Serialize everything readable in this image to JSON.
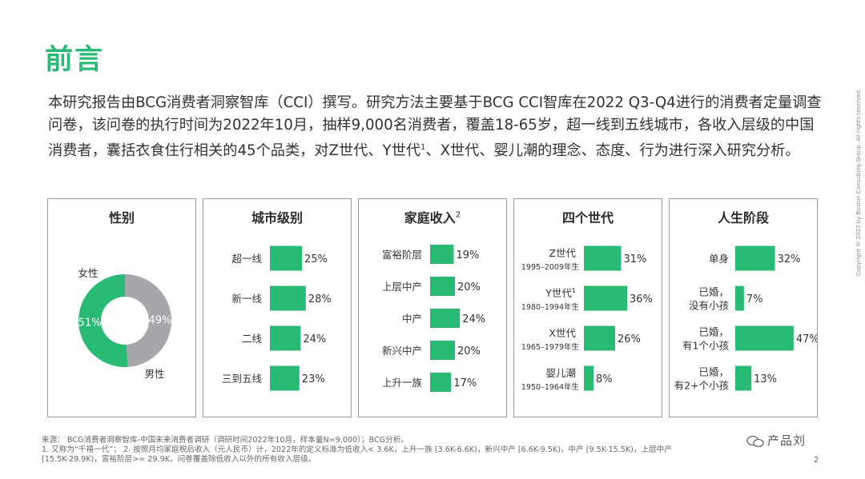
{
  "page_title": "前言",
  "intro_text": "本研究报告由BCG消费者洞察智库（CCI）撰写。研究方法主要基于BCG CCI智库在2022 Q3-Q4进行的消费者定量调查问卷，该问卷的执行时间为2022年10月，抽样9,000名消费者，覆盖18-65岁，超一线到五线城市，各收入层级的中国消费者，囊括衣食住行相关的45个品类，对Z世代、Y世代",
  "intro_sup": "1",
  "intro_tail": "、X世代、婴儿潮的理念、态度、行为进行深入研究分析。",
  "colors": {
    "accent": "#29ba74",
    "gray": "#a7a6ab",
    "bar": "#29ba74"
  },
  "chart_data": [
    {
      "type": "pie",
      "title": "性别",
      "categories": [
        "女性",
        "男性"
      ],
      "values": [
        51,
        49
      ],
      "value_labels": [
        "51%",
        "49%"
      ],
      "colors": [
        "#29ba74",
        "#a7a6ab"
      ],
      "style": "donut"
    },
    {
      "type": "bar",
      "orientation": "horizontal",
      "title": "城市级别",
      "categories": [
        "超一线",
        "新一线",
        "二线",
        "三到五线"
      ],
      "values": [
        25,
        28,
        24,
        23
      ],
      "value_labels": [
        "25%",
        "28%",
        "24%",
        "23%"
      ]
    },
    {
      "type": "bar",
      "orientation": "horizontal",
      "title": "家庭收入",
      "title_sup": "2",
      "categories": [
        "富裕阶层",
        "上层中产",
        "中产",
        "新兴中产",
        "上升一族"
      ],
      "values": [
        19,
        20,
        24,
        20,
        17
      ],
      "value_labels": [
        "19%",
        "20%",
        "24%",
        "20%",
        "17%"
      ]
    },
    {
      "type": "bar",
      "orientation": "horizontal",
      "title": "四个世代",
      "categories": [
        "Z世代",
        "Y世代",
        "X世代",
        "婴儿潮"
      ],
      "category_sup": [
        "",
        "1",
        "",
        ""
      ],
      "sublabels": [
        "1995–2009年生",
        "1980–1994年生",
        "1965–1979年生",
        "1950–1964年生"
      ],
      "values": [
        31,
        36,
        26,
        8
      ],
      "value_labels": [
        "31%",
        "36%",
        "26%",
        "8%"
      ]
    },
    {
      "type": "bar",
      "orientation": "horizontal",
      "title": "人生阶段",
      "categories": [
        [
          "单身"
        ],
        [
          "已婚，",
          "没有小孩"
        ],
        [
          "已婚，",
          "有1个小孩"
        ],
        [
          "已婚，",
          "有2+个小孩"
        ]
      ],
      "values": [
        32,
        7,
        47,
        13
      ],
      "value_labels": [
        "32%",
        "7%",
        "47%",
        "13%"
      ]
    }
  ],
  "footnote": {
    "line1": "来源： BCG消费者洞察智库-中国未来消费者调研（调研时间2022年10月，样本量N=9,000）；BCG分析。",
    "line2": "1. 又称为“千禧一代”；  2. 按照月均家庭税后收入（元人民币）计，2022年的定义标准为低收入< 3.6K，上升一族 [3.6K-6.6K)，新兴中产 [6.6K-9.5K)，中产 [9.5K-15.5K)，上层中产",
    "line3": "[15.5K-29.9K)，富裕阶层>= 29.9K，问卷覆盖除低收入以外的所有收入层级。"
  },
  "page_number": "2",
  "copyright": "Copyright © 2022 by Boston Consulting Group. All rights reserved.",
  "watermark": "产品刘"
}
